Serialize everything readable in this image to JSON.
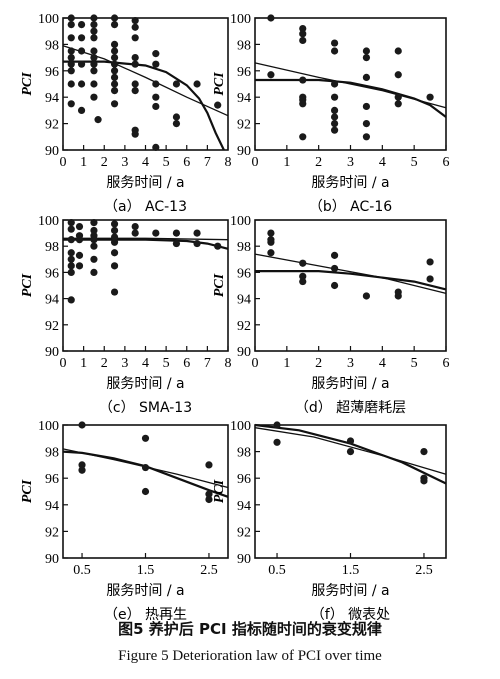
{
  "figure": {
    "caption_cn": "图5 养护后 PCI 指标随时间的衰变规律",
    "caption_en": "Figure 5 Deterioration law of PCI over time"
  },
  "chart_data": [
    {
      "type": "scatter",
      "label": "（a） AC-13",
      "xlabel": "服务时间 / a",
      "ylabel": "PCI",
      "xlim": [
        0,
        8
      ],
      "ylim": [
        90,
        100
      ],
      "xticks": [
        0,
        1,
        2,
        3,
        4,
        5,
        6,
        7,
        8
      ],
      "yticks": [
        90,
        92,
        94,
        96,
        98,
        100
      ],
      "points": [
        [
          0.4,
          100
        ],
        [
          0.4,
          99.5
        ],
        [
          0.4,
          98.5
        ],
        [
          0.4,
          97.5
        ],
        [
          0.4,
          97
        ],
        [
          0.4,
          96.5
        ],
        [
          0.4,
          96
        ],
        [
          0.4,
          95
        ],
        [
          0.4,
          93.5
        ],
        [
          0.9,
          99.5
        ],
        [
          0.9,
          98.5
        ],
        [
          0.9,
          97.5
        ],
        [
          0.9,
          96.5
        ],
        [
          0.9,
          95
        ],
        [
          0.9,
          93
        ],
        [
          1.5,
          100
        ],
        [
          1.5,
          99.5
        ],
        [
          1.5,
          99
        ],
        [
          1.5,
          98.5
        ],
        [
          1.5,
          97.5
        ],
        [
          1.5,
          97
        ],
        [
          1.5,
          96.5
        ],
        [
          1.5,
          96
        ],
        [
          1.5,
          95
        ],
        [
          1.5,
          94
        ],
        [
          1.7,
          92.3
        ],
        [
          2.5,
          100
        ],
        [
          2.5,
          99.5
        ],
        [
          2.5,
          98
        ],
        [
          2.5,
          97.5
        ],
        [
          2.5,
          97
        ],
        [
          2.5,
          96.5
        ],
        [
          2.5,
          96
        ],
        [
          2.5,
          95.5
        ],
        [
          2.5,
          95
        ],
        [
          2.5,
          94.5
        ],
        [
          2.5,
          93.5
        ],
        [
          3.5,
          99.8
        ],
        [
          3.5,
          99.3
        ],
        [
          3.5,
          98.5
        ],
        [
          3.5,
          97
        ],
        [
          3.5,
          96.5
        ],
        [
          3.5,
          95
        ],
        [
          3.5,
          94.5
        ],
        [
          3.5,
          91.5
        ],
        [
          3.5,
          91.2
        ],
        [
          4.5,
          97.3
        ],
        [
          4.5,
          96.5
        ],
        [
          4.5,
          95
        ],
        [
          4.5,
          94
        ],
        [
          4.5,
          93.3
        ],
        [
          4.5,
          90.2
        ],
        [
          5.5,
          95
        ],
        [
          5.5,
          92.5
        ],
        [
          5.5,
          92
        ],
        [
          6.5,
          95
        ],
        [
          7.5,
          93.4
        ]
      ],
      "curves": [
        {
          "type": "steep",
          "points": [
            [
              0,
              96.7
            ],
            [
              2,
              96.7
            ],
            [
              4,
              96.4
            ],
            [
              5,
              95.9
            ],
            [
              6,
              94.9
            ],
            [
              6.6,
              93.9
            ],
            [
              7,
              92.8
            ],
            [
              7.4,
              91.3
            ],
            [
              7.8,
              90
            ]
          ]
        },
        {
          "type": "gradual",
          "points": [
            [
              0,
              97.9
            ],
            [
              2,
              96.9
            ],
            [
              4,
              95.5
            ],
            [
              6,
              94
            ],
            [
              8,
              92.6
            ]
          ]
        }
      ]
    },
    {
      "type": "scatter",
      "label": "（b） AC-16",
      "xlabel": "服务时间 / a",
      "ylabel": "PCI",
      "xlim": [
        0,
        6
      ],
      "ylim": [
        90,
        100
      ],
      "xticks": [
        0,
        1,
        2,
        3,
        4,
        5,
        6
      ],
      "yticks": [
        90,
        92,
        94,
        96,
        98,
        100
      ],
      "points": [
        [
          0.5,
          100
        ],
        [
          0.5,
          95.7
        ],
        [
          1.5,
          99.2
        ],
        [
          1.5,
          98.8
        ],
        [
          1.5,
          98.3
        ],
        [
          1.5,
          95.3
        ],
        [
          1.5,
          94
        ],
        [
          1.5,
          93.8
        ],
        [
          1.5,
          93.5
        ],
        [
          1.5,
          91
        ],
        [
          2.5,
          98.1
        ],
        [
          2.5,
          97.5
        ],
        [
          2.5,
          95
        ],
        [
          2.5,
          94
        ],
        [
          2.5,
          93
        ],
        [
          2.5,
          92.5
        ],
        [
          2.5,
          92
        ],
        [
          2.5,
          91.5
        ],
        [
          3.5,
          97.5
        ],
        [
          3.5,
          97
        ],
        [
          3.5,
          95.5
        ],
        [
          3.5,
          93.3
        ],
        [
          3.5,
          92
        ],
        [
          3.5,
          91
        ],
        [
          4.5,
          97.5
        ],
        [
          4.5,
          95.7
        ],
        [
          4.5,
          94
        ],
        [
          4.5,
          93.5
        ],
        [
          5.5,
          94
        ]
      ],
      "curves": [
        {
          "type": "steep",
          "points": [
            [
              0,
              95.3
            ],
            [
              2,
              95.3
            ],
            [
              3,
              95.1
            ],
            [
              4,
              94.6
            ],
            [
              5,
              93.9
            ],
            [
              5.5,
              93.4
            ],
            [
              6,
              92.5
            ]
          ]
        },
        {
          "type": "gradual",
          "points": [
            [
              0,
              96.6
            ],
            [
              2,
              95.5
            ],
            [
              4,
              94.5
            ],
            [
              6,
              93.2
            ]
          ]
        }
      ]
    },
    {
      "type": "scatter",
      "label": "（c） SMA-13",
      "xlabel": "服务时间 / a",
      "ylabel": "PCI",
      "xlim": [
        0,
        8
      ],
      "ylim": [
        90,
        100
      ],
      "xticks": [
        0,
        1,
        2,
        3,
        4,
        5,
        6,
        7,
        8
      ],
      "yticks": [
        90,
        92,
        94,
        96,
        98,
        100
      ],
      "points": [
        [
          0.4,
          99.8
        ],
        [
          0.4,
          99.3
        ],
        [
          0.4,
          98.5
        ],
        [
          0.4,
          97.5
        ],
        [
          0.4,
          97
        ],
        [
          0.4,
          96.5
        ],
        [
          0.4,
          96
        ],
        [
          0.4,
          93.9
        ],
        [
          0.8,
          99.5
        ],
        [
          0.8,
          98.8
        ],
        [
          0.8,
          98.5
        ],
        [
          0.8,
          97.3
        ],
        [
          0.8,
          96.5
        ],
        [
          1.5,
          99.8
        ],
        [
          1.5,
          99.2
        ],
        [
          1.5,
          98.8
        ],
        [
          1.5,
          98.5
        ],
        [
          1.5,
          98
        ],
        [
          1.5,
          97
        ],
        [
          1.5,
          96
        ],
        [
          2.5,
          99.7
        ],
        [
          2.5,
          99.2
        ],
        [
          2.5,
          98.7
        ],
        [
          2.5,
          98.3
        ],
        [
          2.5,
          97.5
        ],
        [
          2.5,
          96.5
        ],
        [
          2.5,
          94.5
        ],
        [
          3.5,
          99.5
        ],
        [
          3.5,
          99
        ],
        [
          4.5,
          99
        ],
        [
          5.5,
          99
        ],
        [
          5.5,
          98.2
        ],
        [
          6.5,
          99
        ],
        [
          6.5,
          98.2
        ],
        [
          7.5,
          98
        ]
      ],
      "curves": [
        {
          "type": "steep",
          "points": [
            [
              0,
              98.5
            ],
            [
              4,
              98.5
            ],
            [
              6,
              98.4
            ],
            [
              7,
              98.2
            ],
            [
              8,
              97.8
            ]
          ]
        },
        {
          "type": "gradual",
          "points": [
            [
              0,
              98.6
            ],
            [
              4,
              98.6
            ],
            [
              8,
              98.5
            ]
          ]
        }
      ]
    },
    {
      "type": "scatter",
      "label": "（d） 超薄磨耗层",
      "xlabel": "服务时间 / a",
      "ylabel": "PCI",
      "xlim": [
        0,
        6
      ],
      "ylim": [
        90,
        100
      ],
      "xticks": [
        0,
        1,
        2,
        3,
        4,
        5,
        6
      ],
      "yticks": [
        90,
        92,
        94,
        96,
        98,
        100
      ],
      "points": [
        [
          0.5,
          99
        ],
        [
          0.5,
          98.5
        ],
        [
          0.5,
          98.3
        ],
        [
          0.5,
          97.5
        ],
        [
          1.5,
          96.7
        ],
        [
          1.5,
          95.7
        ],
        [
          1.5,
          95.3
        ],
        [
          2.5,
          97.3
        ],
        [
          2.5,
          96.3
        ],
        [
          2.5,
          95
        ],
        [
          3.5,
          94.2
        ],
        [
          4.5,
          94.5
        ],
        [
          4.5,
          94.2
        ],
        [
          5.5,
          96.8
        ],
        [
          5.5,
          95.5
        ]
      ],
      "curves": [
        {
          "type": "steep",
          "points": [
            [
              0,
              96.1
            ],
            [
              2,
              96.1
            ],
            [
              3,
              95.9
            ],
            [
              4,
              95.6
            ],
            [
              5,
              95.3
            ],
            [
              6,
              94.7
            ]
          ]
        },
        {
          "type": "gradual",
          "points": [
            [
              0,
              97.4
            ],
            [
              2,
              96.5
            ],
            [
              4,
              95.6
            ],
            [
              6,
              94.4
            ]
          ]
        }
      ]
    },
    {
      "type": "scatter",
      "label": "（e） 热再生",
      "xlabel": "服务时间 / a",
      "ylabel": "PCI",
      "xlim": [
        0.2,
        2.8
      ],
      "ylim": [
        90,
        100
      ],
      "xticks": [
        0.5,
        1.5,
        2.5
      ],
      "yticks": [
        90,
        92,
        94,
        96,
        98,
        100
      ],
      "points": [
        [
          0.5,
          100
        ],
        [
          0.5,
          97
        ],
        [
          0.5,
          96.6
        ],
        [
          1.5,
          99
        ],
        [
          1.5,
          96.8
        ],
        [
          1.5,
          95
        ],
        [
          2.5,
          97
        ],
        [
          2.5,
          94.8
        ],
        [
          2.5,
          94.4
        ]
      ],
      "curves": [
        {
          "type": "steep",
          "points": [
            [
              0.2,
              98
            ],
            [
              0.5,
              97.9
            ],
            [
              1,
              97.5
            ],
            [
              1.5,
              96.9
            ],
            [
              2,
              96
            ],
            [
              2.5,
              95.1
            ],
            [
              2.8,
              94.6
            ]
          ]
        },
        {
          "type": "gradual",
          "points": [
            [
              0.2,
              98.2
            ],
            [
              1,
              97.4
            ],
            [
              2,
              96.3
            ],
            [
              2.8,
              95.3
            ]
          ]
        }
      ]
    },
    {
      "type": "scatter",
      "label": "（f） 微表处",
      "xlabel": "服务时间 / a",
      "ylabel": "PCI",
      "xlim": [
        0.2,
        2.8
      ],
      "ylim": [
        90,
        100
      ],
      "xticks": [
        0.5,
        1.5,
        2.5
      ],
      "yticks": [
        90,
        92,
        94,
        96,
        98,
        100
      ],
      "points": [
        [
          0.5,
          100
        ],
        [
          0.5,
          98.7
        ],
        [
          1.5,
          98.8
        ],
        [
          1.5,
          98
        ],
        [
          2.5,
          98
        ],
        [
          2.5,
          96
        ],
        [
          2.5,
          95.8
        ]
      ],
      "curves": [
        {
          "type": "steep",
          "points": [
            [
              0.2,
              100
            ],
            [
              0.8,
              99.6
            ],
            [
              1.5,
              98.6
            ],
            [
              2.2,
              97.2
            ],
            [
              2.8,
              95.6
            ]
          ]
        },
        {
          "type": "gradual",
          "points": [
            [
              0.2,
              99.8
            ],
            [
              1,
              99.1
            ],
            [
              2,
              97.6
            ],
            [
              2.8,
              96.3
            ]
          ]
        }
      ]
    }
  ]
}
